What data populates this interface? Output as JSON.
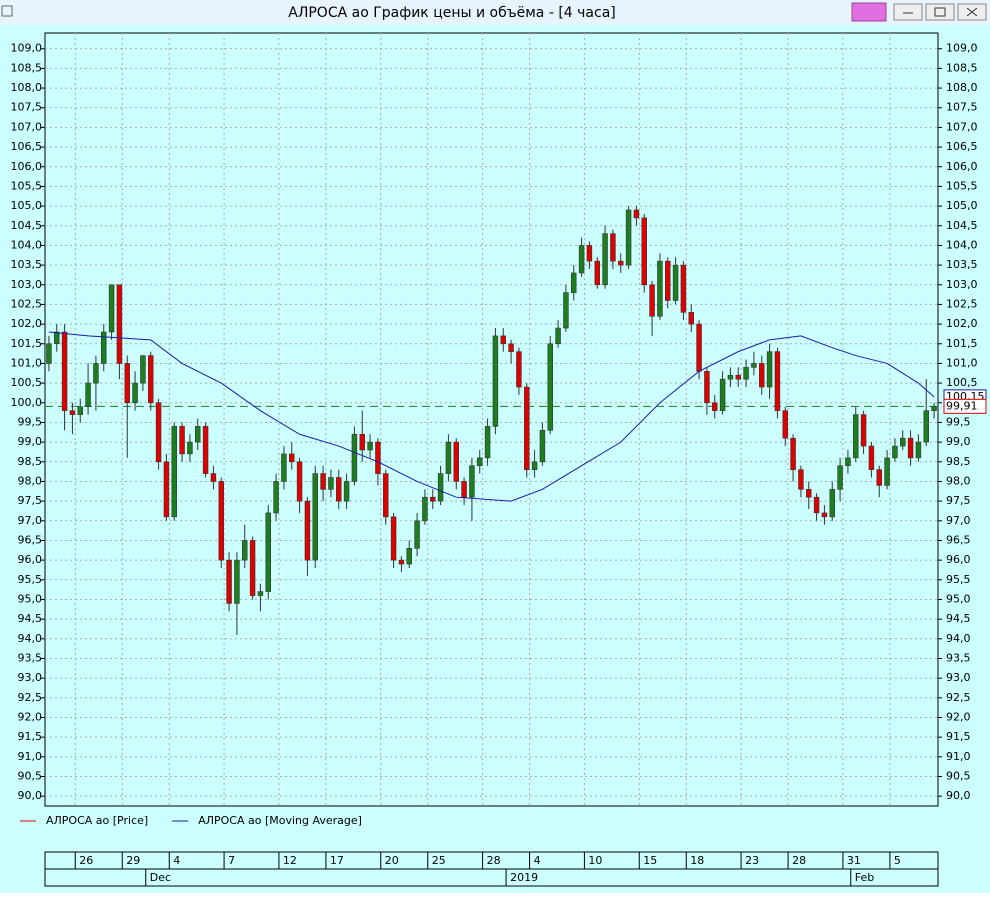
{
  "window_title": "АЛРОСА ао График цены и объёма - [4 часа]",
  "chart_data": {
    "type": "candlestick",
    "series": [
      {
        "name": "АЛРОСА ао [Price]",
        "color": "#e00000",
        "up_color": "#1e7d1e",
        "open": [
          101.0,
          101.5,
          101.8,
          99.8,
          99.7,
          99.9,
          100.5,
          101.0,
          101.8,
          103.0,
          101.0,
          100.0,
          100.5,
          101.2,
          100.0,
          98.5,
          97.1,
          99.4,
          98.7,
          99.0,
          99.4,
          98.2,
          98.0,
          96.0,
          94.9,
          96.0,
          96.5,
          95.1,
          95.2,
          97.2,
          98.0,
          98.7,
          98.5,
          97.5,
          96.0,
          98.2,
          97.8,
          98.1,
          97.5,
          98.0,
          99.2,
          98.8,
          99.0,
          98.2,
          97.1,
          96.0,
          95.9,
          96.3,
          97.0,
          97.6,
          97.5,
          98.2,
          99.0,
          98.0,
          97.6,
          98.4,
          98.6,
          99.4,
          101.7,
          101.5,
          101.3,
          100.4,
          98.3,
          98.5,
          99.3,
          101.5,
          101.9,
          102.8,
          103.3,
          104.0,
          103.6,
          103.0,
          104.3,
          103.6,
          103.5,
          104.9,
          104.7,
          103.0,
          102.2,
          103.6,
          102.6,
          103.5,
          102.3,
          102.0,
          100.8,
          100.0,
          99.8,
          100.6,
          100.7,
          100.6,
          100.9,
          101.0,
          100.4,
          101.3,
          99.8,
          99.1,
          98.3,
          97.8,
          97.6,
          97.2,
          97.1,
          97.8,
          98.4,
          98.6,
          99.7,
          98.9,
          98.3,
          97.9,
          98.6,
          98.9,
          99.1,
          98.6,
          99.0,
          99.8
        ],
        "high": [
          101.7,
          102.0,
          102.0,
          100.0,
          100.1,
          101.0,
          101.2,
          102.0,
          103.0,
          103.0,
          101.2,
          100.8,
          101.2,
          101.3,
          100.1,
          98.7,
          99.5,
          99.5,
          99.2,
          99.6,
          99.5,
          98.4,
          98.1,
          96.2,
          96.2,
          96.9,
          96.6,
          95.4,
          97.4,
          98.2,
          98.9,
          99.0,
          98.6,
          97.6,
          98.4,
          98.4,
          98.3,
          98.3,
          98.2,
          99.4,
          99.8,
          99.2,
          99.1,
          98.3,
          97.2,
          96.1,
          96.5,
          97.2,
          97.8,
          97.8,
          98.4,
          99.2,
          99.1,
          98.1,
          98.6,
          98.8,
          99.6,
          101.9,
          101.9,
          101.6,
          101.4,
          100.5,
          98.8,
          99.5,
          101.7,
          102.1,
          103.0,
          103.5,
          104.2,
          104.1,
          103.7,
          104.5,
          104.4,
          103.8,
          105.0,
          105.0,
          104.8,
          103.1,
          103.8,
          103.7,
          103.7,
          103.6,
          102.5,
          102.1,
          100.9,
          100.2,
          100.8,
          100.9,
          100.9,
          101.1,
          101.3,
          101.2,
          101.5,
          101.4,
          99.9,
          99.2,
          98.4,
          98.0,
          97.7,
          97.4,
          98.0,
          98.6,
          98.8,
          99.9,
          99.8,
          99.0,
          98.4,
          98.8,
          99.1,
          99.3,
          99.3,
          99.2,
          100.6,
          100.0
        ],
        "low": [
          100.8,
          101.3,
          99.3,
          99.2,
          99.5,
          99.7,
          99.8,
          100.8,
          101.6,
          100.6,
          98.6,
          99.8,
          100.3,
          99.8,
          98.3,
          97.0,
          97.0,
          98.5,
          98.5,
          98.8,
          98.1,
          97.8,
          95.8,
          94.7,
          94.1,
          95.8,
          95.0,
          94.7,
          95.0,
          97.0,
          97.8,
          98.3,
          97.2,
          95.6,
          95.8,
          97.5,
          97.6,
          97.3,
          97.3,
          97.9,
          98.5,
          98.6,
          97.9,
          96.9,
          95.8,
          95.7,
          95.8,
          96.1,
          96.9,
          97.3,
          97.4,
          98.0,
          97.8,
          97.4,
          97.0,
          98.2,
          98.4,
          99.2,
          101.3,
          101.0,
          100.2,
          98.1,
          98.1,
          98.4,
          99.2,
          101.4,
          101.8,
          102.6,
          103.2,
          103.4,
          102.9,
          102.9,
          103.4,
          103.3,
          103.4,
          104.5,
          102.8,
          101.7,
          102.1,
          102.4,
          102.5,
          102.1,
          101.8,
          100.6,
          99.7,
          99.6,
          99.7,
          100.4,
          100.4,
          100.4,
          100.7,
          100.2,
          100.1,
          99.6,
          98.9,
          98.0,
          97.6,
          97.3,
          97.0,
          96.9,
          97.0,
          97.5,
          98.2,
          98.5,
          98.7,
          98.1,
          97.6,
          97.8,
          98.5,
          98.8,
          98.4,
          98.5,
          98.9,
          99.6
        ],
        "close": [
          101.5,
          101.8,
          99.8,
          99.7,
          99.9,
          100.5,
          101.0,
          101.8,
          103.0,
          101.0,
          100.0,
          100.5,
          101.2,
          100.0,
          98.5,
          97.1,
          99.4,
          98.7,
          99.0,
          99.4,
          98.2,
          98.0,
          96.0,
          94.9,
          96.0,
          96.5,
          95.1,
          95.2,
          97.2,
          98.0,
          98.7,
          98.5,
          97.5,
          96.0,
          98.2,
          97.8,
          98.1,
          97.5,
          98.0,
          99.2,
          98.8,
          99.0,
          98.2,
          97.1,
          96.0,
          95.9,
          96.3,
          97.0,
          97.6,
          97.5,
          98.2,
          99.0,
          98.0,
          97.6,
          98.4,
          98.6,
          99.4,
          101.7,
          101.5,
          101.3,
          100.4,
          98.3,
          98.5,
          99.3,
          101.5,
          101.9,
          102.8,
          103.3,
          104.0,
          103.6,
          103.0,
          104.3,
          103.6,
          103.5,
          104.9,
          104.7,
          103.0,
          102.2,
          103.6,
          102.6,
          103.5,
          102.3,
          102.0,
          100.8,
          100.0,
          99.8,
          100.6,
          100.7,
          100.6,
          100.9,
          101.0,
          100.4,
          101.3,
          99.8,
          99.1,
          98.3,
          97.8,
          97.6,
          97.2,
          97.1,
          97.8,
          98.4,
          98.6,
          99.7,
          98.9,
          98.3,
          97.9,
          98.6,
          98.9,
          99.1,
          98.6,
          99.0,
          99.8,
          99.91
        ]
      },
      {
        "name": "АЛРОСА ао [Moving Average]",
        "color": "#1a1aa8",
        "x": [
          0,
          5,
          13,
          17,
          22,
          27,
          32,
          37,
          42,
          47,
          52,
          59,
          63,
          68,
          73,
          78,
          83,
          88,
          92,
          96,
          100,
          103,
          107,
          111,
          113
        ],
        "values": [
          101.8,
          101.7,
          101.6,
          101.0,
          100.5,
          99.8,
          99.2,
          98.9,
          98.5,
          98.0,
          97.6,
          97.5,
          97.8,
          98.4,
          99.0,
          100.0,
          100.8,
          101.3,
          101.6,
          101.7,
          101.4,
          101.2,
          101.0,
          100.5,
          100.15
        ]
      }
    ],
    "price_last": {
      "value": 99.91,
      "label": "99,91"
    },
    "ma_last": {
      "value": 100.15,
      "label": "100,15"
    },
    "xlim": [
      -0.5,
      113.5
    ],
    "xticks": [
      {
        "value": 4,
        "label": "26"
      },
      {
        "value": 10,
        "label": "29"
      },
      {
        "value": 16,
        "label": "4"
      },
      {
        "value": 23,
        "label": "7"
      },
      {
        "value": 30,
        "label": "12"
      },
      {
        "value": 36,
        "label": "17"
      },
      {
        "value": 43,
        "label": "20"
      },
      {
        "value": 49,
        "label": "25"
      },
      {
        "value": 56,
        "label": "28"
      },
      {
        "value": 62,
        "label": "4"
      },
      {
        "value": 69,
        "label": "10"
      },
      {
        "value": 76,
        "label": "15"
      },
      {
        "value": 82,
        "label": "18"
      },
      {
        "value": 89,
        "label": "23"
      },
      {
        "value": 95,
        "label": "28"
      },
      {
        "value": 102,
        "label": "31"
      },
      {
        "value": 108,
        "label": "5"
      }
    ],
    "month_ticks": [
      {
        "value": 13,
        "label": "Dec"
      },
      {
        "value": 59,
        "label": "2019"
      },
      {
        "value": 103,
        "label": "Feb"
      }
    ],
    "ylim": [
      89.75,
      109.4
    ],
    "yticks": [
      {
        "value": 90.0,
        "label": "90,0"
      },
      {
        "value": 90.5,
        "label": "90,5"
      },
      {
        "value": 91.0,
        "label": "91,0"
      },
      {
        "value": 91.5,
        "label": "91,5"
      },
      {
        "value": 92.0,
        "label": "92,0"
      },
      {
        "value": 92.5,
        "label": "92,5"
      },
      {
        "value": 93.0,
        "label": "93,0"
      },
      {
        "value": 93.5,
        "label": "93,5"
      },
      {
        "value": 94.0,
        "label": "94,0"
      },
      {
        "value": 94.5,
        "label": "94,5"
      },
      {
        "value": 95.0,
        "label": "95,0"
      },
      {
        "value": 95.5,
        "label": "95,5"
      },
      {
        "value": 96.0,
        "label": "96,0"
      },
      {
        "value": 96.5,
        "label": "96,5"
      },
      {
        "value": 97.0,
        "label": "97,0"
      },
      {
        "value": 97.5,
        "label": "97,5"
      },
      {
        "value": 98.0,
        "label": "98,0"
      },
      {
        "value": 98.5,
        "label": "98,5"
      },
      {
        "value": 99.0,
        "label": "99,0"
      },
      {
        "value": 99.5,
        "label": "99,5"
      },
      {
        "value": 100.0,
        "label": "100,0"
      },
      {
        "value": 100.5,
        "label": "100,5"
      },
      {
        "value": 101.0,
        "label": "101,0"
      },
      {
        "value": 101.5,
        "label": "101,5"
      },
      {
        "value": 102.0,
        "label": "102,0"
      },
      {
        "value": 102.5,
        "label": "102,5"
      },
      {
        "value": 103.0,
        "label": "103,0"
      },
      {
        "value": 103.5,
        "label": "103,5"
      },
      {
        "value": 104.0,
        "label": "104,0"
      },
      {
        "value": 104.5,
        "label": "104,5"
      },
      {
        "value": 105.0,
        "label": "105,0"
      },
      {
        "value": 105.5,
        "label": "105,5"
      },
      {
        "value": 106.0,
        "label": "106,0"
      },
      {
        "value": 106.5,
        "label": "106,5"
      },
      {
        "value": 107.0,
        "label": "107,0"
      },
      {
        "value": 107.5,
        "label": "107,5"
      },
      {
        "value": 108.0,
        "label": "108,0"
      },
      {
        "value": 108.5,
        "label": "108,5"
      },
      {
        "value": 109.0,
        "label": "109,0"
      }
    ],
    "grid": true
  }
}
